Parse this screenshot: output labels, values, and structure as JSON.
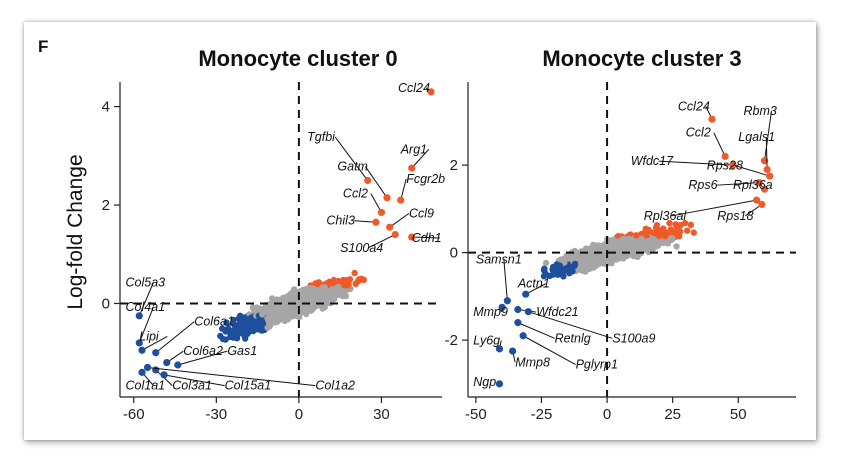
{
  "figure": {
    "panel_letter": "F",
    "ylabel": "Log-fold Change",
    "colors": {
      "up": "#f05a28",
      "down": "#1f4e9c",
      "ns": "#a6a6a6"
    }
  },
  "chart_data": [
    {
      "type": "scatter",
      "title": "Monocyte cluster 0",
      "ylabel": "Log-fold Change",
      "xlim": [
        -65,
        52
      ],
      "ylim": [
        -1.9,
        4.5
      ],
      "xticks": [
        "-60",
        "-30",
        "0",
        "30"
      ],
      "xtick_values": [
        -60,
        -30,
        0,
        30
      ],
      "yticks": [
        "0",
        "2",
        "4"
      ],
      "ytick_values": [
        0,
        2,
        4
      ],
      "grid": false,
      "reference_lines": {
        "x": 0,
        "y": 0
      },
      "labeled_points": [
        {
          "gene": "Ccl24",
          "x": 48,
          "y": 4.3,
          "lx": 36,
          "ly": 4.3,
          "group": "up"
        },
        {
          "gene": "Tgfbi",
          "x": 25,
          "y": 2.5,
          "lx": 3,
          "ly": 3.3,
          "group": "up"
        },
        {
          "gene": "Arg1",
          "x": 41,
          "y": 2.75,
          "lx": 37,
          "ly": 3.05,
          "group": "up"
        },
        {
          "gene": "Gatm",
          "x": 32,
          "y": 2.15,
          "lx": 14,
          "ly": 2.7,
          "group": "up"
        },
        {
          "gene": "Fcgr2b",
          "x": 37,
          "y": 2.1,
          "lx": 39,
          "ly": 2.45,
          "group": "up"
        },
        {
          "gene": "Ccl2",
          "x": 30,
          "y": 1.85,
          "lx": 16,
          "ly": 2.15,
          "group": "up"
        },
        {
          "gene": "Ccl9",
          "x": 33,
          "y": 1.55,
          "lx": 40,
          "ly": 1.75,
          "group": "up"
        },
        {
          "gene": "Chil3",
          "x": 28,
          "y": 1.65,
          "lx": 10,
          "ly": 1.6,
          "group": "up"
        },
        {
          "gene": "Cdh1",
          "x": 41,
          "y": 1.35,
          "lx": 41,
          "ly": 1.25,
          "group": "up"
        },
        {
          "gene": "S100a4",
          "x": 35,
          "y": 1.4,
          "lx": 15,
          "ly": 1.05,
          "group": "up"
        },
        {
          "gene": "Col5a3",
          "x": -58,
          "y": -0.25,
          "lx": -63,
          "ly": 0.35,
          "group": "down"
        },
        {
          "gene": "Col4a1",
          "x": -58,
          "y": -0.8,
          "lx": -63,
          "ly": -0.15,
          "group": "down"
        },
        {
          "gene": "Col6a1",
          "x": -52,
          "y": -1.0,
          "lx": -38,
          "ly": -0.45,
          "group": "down"
        },
        {
          "gene": "Lipi",
          "x": -57,
          "y": -0.95,
          "lx": -58,
          "ly": -0.75,
          "group": "down"
        },
        {
          "gene": "Col6a2",
          "x": -48,
          "y": -1.2,
          "lx": -42,
          "ly": -1.05,
          "group": "down"
        },
        {
          "gene": "Gas1",
          "x": -44,
          "y": -1.25,
          "lx": -26,
          "ly": -1.05,
          "group": "down"
        },
        {
          "gene": "Col1a1",
          "x": -57,
          "y": -1.4,
          "lx": -63,
          "ly": -1.75,
          "group": "down"
        },
        {
          "gene": "Col3a1",
          "x": -52,
          "y": -1.35,
          "lx": -46,
          "ly": -1.75,
          "group": "down"
        },
        {
          "gene": "Col15a1",
          "x": -49,
          "y": -1.45,
          "lx": -27,
          "ly": -1.75,
          "group": "down"
        },
        {
          "gene": "Col1a2",
          "x": -55,
          "y": -1.3,
          "lx": 6,
          "ly": -1.75,
          "group": "down"
        }
      ]
    },
    {
      "type": "scatter",
      "title": "Monocyte cluster 3",
      "xlim": [
        -53,
        72
      ],
      "ylim": [
        -3.3,
        3.9
      ],
      "xticks": [
        "-50",
        "-25",
        "0",
        "25",
        "50"
      ],
      "xtick_values": [
        -50,
        -25,
        0,
        25,
        50
      ],
      "yticks": [
        "-2",
        "0",
        "2"
      ],
      "ytick_values": [
        -2,
        0,
        2
      ],
      "grid": false,
      "reference_lines": {
        "x": 0,
        "y": 0
      },
      "labeled_points": [
        {
          "gene": "Ccl24",
          "x": 40,
          "y": 3.05,
          "lx": 27,
          "ly": 3.25,
          "group": "up"
        },
        {
          "gene": "Rbm3",
          "x": 60,
          "y": 2.1,
          "lx": 52,
          "ly": 3.15,
          "group": "up"
        },
        {
          "gene": "Ccl2",
          "x": 45,
          "y": 2.2,
          "lx": 30,
          "ly": 2.65,
          "group": "up"
        },
        {
          "gene": "Lgals1",
          "x": 61,
          "y": 1.9,
          "lx": 50,
          "ly": 2.55,
          "group": "up"
        },
        {
          "gene": "Wfdc17",
          "x": 48,
          "y": 2.0,
          "lx": 9,
          "ly": 2.0,
          "group": "up"
        },
        {
          "gene": "Rps28",
          "x": 62,
          "y": 1.75,
          "lx": 38,
          "ly": 1.9,
          "group": "up"
        },
        {
          "gene": "Rps6",
          "x": 58,
          "y": 1.6,
          "lx": 31,
          "ly": 1.45,
          "group": "up"
        },
        {
          "gene": "Rpl36a",
          "x": 60,
          "y": 1.45,
          "lx": 48,
          "ly": 1.45,
          "group": "up"
        },
        {
          "gene": "Rpl36al",
          "x": 57,
          "y": 1.2,
          "lx": 14,
          "ly": 0.75,
          "group": "up"
        },
        {
          "gene": "Rps18",
          "x": 59,
          "y": 1.1,
          "lx": 42,
          "ly": 0.75,
          "group": "up"
        },
        {
          "gene": "Samsn1",
          "x": -38,
          "y": -1.1,
          "lx": -50,
          "ly": -0.25,
          "group": "down"
        },
        {
          "gene": "Actn1",
          "x": -31,
          "y": -0.95,
          "lx": -34,
          "ly": -0.8,
          "group": "down"
        },
        {
          "gene": "Mmp9",
          "x": -40,
          "y": -1.25,
          "lx": -51,
          "ly": -1.45,
          "group": "down"
        },
        {
          "gene": "Wfdc21",
          "x": -34,
          "y": -1.3,
          "lx": -27,
          "ly": -1.45,
          "group": "down"
        },
        {
          "gene": "Retnlg",
          "x": -34,
          "y": -1.6,
          "lx": -20,
          "ly": -2.05,
          "group": "down"
        },
        {
          "gene": "S100a9",
          "x": -30,
          "y": -1.35,
          "lx": 2,
          "ly": -2.05,
          "group": "down"
        },
        {
          "gene": "Ly6g",
          "x": -41,
          "y": -2.2,
          "lx": -51,
          "ly": -2.1,
          "group": "down"
        },
        {
          "gene": "Mmp8",
          "x": -36,
          "y": -2.25,
          "lx": -35,
          "ly": -2.6,
          "group": "down"
        },
        {
          "gene": "Pglyrp1",
          "x": -32,
          "y": -1.9,
          "lx": -12,
          "ly": -2.65,
          "group": "down"
        },
        {
          "gene": "Ngp",
          "x": -41,
          "y": -3.0,
          "lx": -51,
          "ly": -3.05,
          "group": "down"
        }
      ]
    }
  ]
}
